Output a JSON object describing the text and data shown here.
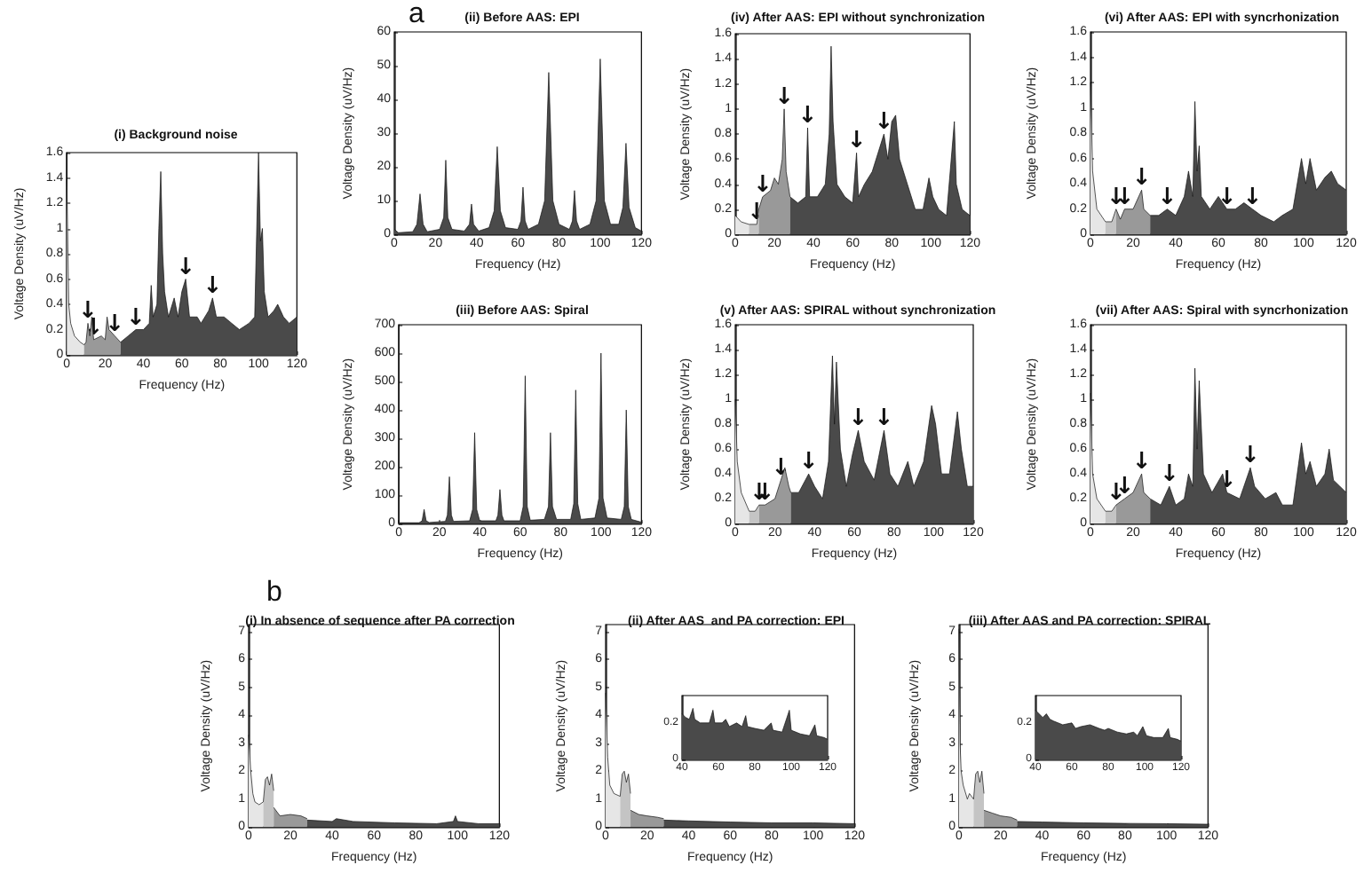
{
  "chart_data": [
    {
      "type": "area",
      "title": "(i) Background noise",
      "xlabel": "Frequency (Hz)",
      "ylabel": "Voltage Density (uV/Hz)",
      "xlim": [
        0,
        120
      ],
      "xticks": [
        0,
        20,
        40,
        60,
        80,
        100,
        120
      ],
      "ylim": [
        0,
        1.6
      ],
      "yticks": [
        0,
        0.2,
        0.4,
        0.6,
        0.8,
        1,
        1.2,
        1.4,
        1.6
      ],
      "grid": false,
      "series": [
        {
          "color": "#e6e6e6",
          "x": [
            0,
            1,
            2,
            4,
            7,
            9
          ],
          "values": [
            1.4,
            0.4,
            0.25,
            0.15,
            0.1,
            0.08
          ]
        },
        {
          "color": "#999999",
          "x": [
            9,
            10,
            11,
            12,
            13,
            14,
            18,
            20,
            21,
            22,
            25,
            28
          ],
          "values": [
            0.08,
            0.1,
            0.25,
            0.15,
            0.3,
            0.12,
            0.15,
            0.12,
            0.3,
            0.2,
            0.15,
            0.1
          ]
        },
        {
          "color": "#4a4a4a",
          "x": [
            28,
            32,
            36,
            40,
            43,
            44,
            45,
            47,
            48,
            49,
            50,
            51,
            53,
            56,
            58,
            60,
            62,
            64,
            68,
            70,
            74,
            76,
            78,
            82,
            86,
            90,
            95,
            98,
            100,
            101,
            102,
            103,
            105,
            108,
            110,
            113,
            116,
            120
          ],
          "values": [
            0.1,
            0.15,
            0.2,
            0.2,
            0.25,
            0.55,
            0.3,
            0.4,
            1.0,
            1.45,
            0.8,
            0.5,
            0.3,
            0.45,
            0.3,
            0.5,
            0.6,
            0.3,
            0.3,
            0.25,
            0.35,
            0.45,
            0.3,
            0.3,
            0.25,
            0.2,
            0.25,
            0.3,
            1.6,
            0.9,
            1.0,
            0.5,
            0.3,
            0.35,
            0.4,
            0.3,
            0.25,
            0.3
          ]
        }
      ],
      "annotations": [
        {
          "text": "↓",
          "x": 11,
          "y": 0.25
        },
        {
          "text": "↓",
          "x": 14,
          "y": 0.12
        },
        {
          "text": "↓",
          "x": 25,
          "y": 0.15
        },
        {
          "text": "↓",
          "x": 36,
          "y": 0.2
        },
        {
          "text": "↓",
          "x": 62,
          "y": 0.6
        },
        {
          "text": "↓",
          "x": 76,
          "y": 0.45
        }
      ]
    },
    {
      "type": "area",
      "title": "(ii) Before AAS: EPI",
      "xlabel": "Frequency (Hz)",
      "ylabel": "Voltage Density (uV/Hz)",
      "xlim": [
        0,
        120
      ],
      "xticks": [
        0,
        20,
        40,
        60,
        80,
        100,
        120
      ],
      "ylim": [
        0,
        60
      ],
      "yticks": [
        0,
        10,
        20,
        30,
        40,
        50,
        60
      ],
      "grid": false,
      "series": [
        {
          "color": "#4a4a4a",
          "x": [
            0,
            2,
            9,
            11,
            12.5,
            14,
            16,
            22,
            24,
            25,
            26,
            28,
            34,
            36.5,
            37.5,
            38.5,
            41,
            46,
            48.5,
            50,
            51.5,
            54,
            60,
            61.5,
            62.5,
            63.5,
            65,
            70,
            73,
            75,
            77,
            80,
            85,
            86.5,
            87.5,
            88.5,
            90,
            95,
            98,
            100,
            102,
            105,
            109,
            111,
            112.5,
            114,
            117,
            120
          ],
          "values": [
            1.5,
            0.5,
            0.8,
            3,
            12,
            3,
            0.8,
            1.5,
            5,
            22,
            5,
            1.5,
            1,
            3,
            9,
            3,
            1,
            2,
            7,
            26,
            7,
            2,
            1.5,
            4,
            14,
            4,
            1.5,
            3,
            10,
            48,
            10,
            3,
            1.5,
            4,
            13,
            4,
            1.5,
            3,
            10,
            52,
            10,
            3,
            3,
            8,
            27,
            8,
            2,
            1
          ]
        }
      ],
      "annotations": [
        "a"
      ]
    },
    {
      "type": "area",
      "title": "(iv) After AAS: EPI without synchronization",
      "xlabel": "Frequency (Hz)",
      "ylabel": "Voltage Density (uV/Hz)",
      "xlim": [
        0,
        120
      ],
      "xticks": [
        0,
        20,
        40,
        60,
        80,
        100,
        120
      ],
      "ylim": [
        0,
        1.6
      ],
      "yticks": [
        0,
        0.2,
        0.4,
        0.6,
        0.8,
        1,
        1.2,
        1.4,
        1.6
      ],
      "grid": false,
      "series": [
        {
          "color": "#e6e6e6",
          "x": [
            0,
            3,
            7
          ],
          "values": [
            0.15,
            0.1,
            0.08
          ]
        },
        {
          "color": "#c4c4c4",
          "x": [
            7,
            11,
            12
          ],
          "values": [
            0.08,
            0.08,
            0.2
          ]
        },
        {
          "color": "#999999",
          "x": [
            12,
            14,
            18,
            20,
            22,
            24,
            25,
            26,
            28
          ],
          "values": [
            0.2,
            0.3,
            0.35,
            0.45,
            0.4,
            0.6,
            1.0,
            0.5,
            0.3
          ]
        },
        {
          "color": "#4a4a4a",
          "x": [
            28,
            32,
            36,
            37,
            38,
            42,
            46,
            48,
            49,
            50,
            52,
            56,
            60,
            62,
            63,
            66,
            70,
            74,
            76,
            78,
            80,
            82,
            84,
            88,
            92,
            96,
            99,
            101,
            104,
            108,
            112,
            113,
            116,
            120
          ],
          "values": [
            0.3,
            0.25,
            0.3,
            0.85,
            0.3,
            0.3,
            0.4,
            0.8,
            1.5,
            0.9,
            0.4,
            0.3,
            0.25,
            0.65,
            0.3,
            0.4,
            0.5,
            0.7,
            0.8,
            0.6,
            0.9,
            0.95,
            0.6,
            0.4,
            0.2,
            0.2,
            0.45,
            0.3,
            0.2,
            0.15,
            0.9,
            0.4,
            0.2,
            0.15
          ]
        }
      ],
      "annotations": [
        {
          "text": "↓",
          "x": 11,
          "y": 0.08
        },
        {
          "text": "↓",
          "x": 14,
          "y": 0.3
        },
        {
          "text": "↓",
          "x": 25,
          "y": 1.0
        },
        {
          "text": "↓",
          "x": 37,
          "y": 0.85
        },
        {
          "text": "↓",
          "x": 62,
          "y": 0.65
        },
        {
          "text": "↓",
          "x": 76,
          "y": 0.8
        }
      ]
    },
    {
      "type": "area",
      "title": "(vi) After AAS: EPI with syncrhonization",
      "xlabel": "Frequency (Hz)",
      "ylabel": "Voltage Density (uV/Hz)",
      "xlim": [
        0,
        120
      ],
      "xticks": [
        0,
        20,
        40,
        60,
        80,
        100,
        120
      ],
      "ylim": [
        0,
        1.6
      ],
      "yticks": [
        0,
        0.2,
        0.4,
        0.6,
        0.8,
        1,
        1.2,
        1.4,
        1.6
      ],
      "grid": false,
      "series": [
        {
          "color": "#e6e6e6",
          "x": [
            0,
            1,
            3,
            7
          ],
          "values": [
            1.2,
            0.5,
            0.2,
            0.1
          ]
        },
        {
          "color": "#c4c4c4",
          "x": [
            7,
            10,
            12
          ],
          "values": [
            0.1,
            0.1,
            0.2
          ]
        },
        {
          "color": "#999999",
          "x": [
            12,
            14,
            16,
            20,
            24,
            25,
            28
          ],
          "values": [
            0.2,
            0.12,
            0.2,
            0.2,
            0.35,
            0.2,
            0.15
          ]
        },
        {
          "color": "#4a4a4a",
          "x": [
            28,
            32,
            36,
            40,
            44,
            46,
            48,
            49,
            50,
            51,
            52,
            56,
            60,
            64,
            68,
            72,
            76,
            80,
            86,
            90,
            95,
            99,
            101,
            103,
            106,
            110,
            113,
            116,
            120
          ],
          "values": [
            0.15,
            0.15,
            0.2,
            0.15,
            0.3,
            0.5,
            0.3,
            1.05,
            0.5,
            0.7,
            0.3,
            0.2,
            0.3,
            0.2,
            0.2,
            0.25,
            0.2,
            0.15,
            0.1,
            0.15,
            0.2,
            0.6,
            0.4,
            0.6,
            0.35,
            0.45,
            0.5,
            0.4,
            0.35
          ]
        }
      ],
      "annotations": [
        {
          "text": "↓",
          "x": 12,
          "y": 0.2
        },
        {
          "text": "↓",
          "x": 16,
          "y": 0.2
        },
        {
          "text": "↓",
          "x": 24,
          "y": 0.35
        },
        {
          "text": "↓",
          "x": 36,
          "y": 0.2
        },
        {
          "text": "↓",
          "x": 64,
          "y": 0.2
        },
        {
          "text": "↓",
          "x": 76,
          "y": 0.2
        }
      ]
    },
    {
      "type": "area",
      "title": "(iii) Before AAS: Spiral",
      "xlabel": "Frequency (Hz)",
      "ylabel": "Voltage Density (uV/Hz)",
      "xlim": [
        0,
        120
      ],
      "xticks": [
        0,
        20,
        40,
        60,
        80,
        100,
        120
      ],
      "ylim": [
        0,
        700
      ],
      "yticks": [
        0,
        100,
        200,
        300,
        400,
        500,
        600,
        700
      ],
      "grid": false,
      "series": [
        {
          "color": "#4a4a4a",
          "x": [
            0,
            10,
            11.5,
            12.5,
            13.5,
            15,
            23,
            24,
            25,
            26,
            27,
            35,
            36.5,
            37.5,
            38.5,
            40,
            48,
            49,
            50,
            51,
            52,
            60,
            61.5,
            62.5,
            63.5,
            65,
            72,
            74,
            75,
            76,
            78,
            85,
            86.5,
            87.5,
            88.5,
            90,
            97,
            99,
            100,
            101,
            103,
            110,
            111.5,
            112.5,
            113.5,
            115,
            120
          ],
          "values": [
            3,
            3,
            10,
            50,
            10,
            4,
            8,
            30,
            165,
            30,
            8,
            10,
            50,
            320,
            50,
            10,
            10,
            30,
            120,
            30,
            10,
            10,
            60,
            520,
            60,
            12,
            15,
            60,
            320,
            60,
            15,
            15,
            70,
            470,
            70,
            15,
            20,
            90,
            600,
            90,
            20,
            15,
            60,
            400,
            60,
            15,
            5
          ]
        }
      ]
    },
    {
      "type": "area",
      "title": "(v) After AAS: SPIRAL without synchronization",
      "xlabel": "Frequency (Hz)",
      "ylabel": "Voltage Density (uV/Hz)",
      "xlim": [
        0,
        120
      ],
      "xticks": [
        0,
        20,
        40,
        60,
        80,
        100,
        120
      ],
      "ylim": [
        0,
        1.6
      ],
      "yticks": [
        0,
        0.2,
        0.4,
        0.6,
        0.8,
        1,
        1.2,
        1.4,
        1.6
      ],
      "grid": false,
      "series": [
        {
          "color": "#e6e6e6",
          "x": [
            0,
            1,
            3,
            7
          ],
          "values": [
            1.0,
            0.5,
            0.25,
            0.1
          ]
        },
        {
          "color": "#c4c4c4",
          "x": [
            7,
            10,
            12
          ],
          "values": [
            0.1,
            0.1,
            0.15
          ]
        },
        {
          "color": "#999999",
          "x": [
            12,
            15,
            20,
            23,
            25,
            27,
            28
          ],
          "values": [
            0.15,
            0.15,
            0.2,
            0.35,
            0.45,
            0.3,
            0.25
          ]
        },
        {
          "color": "#4a4a4a",
          "x": [
            28,
            32,
            37,
            40,
            44,
            47,
            49,
            50,
            51,
            53,
            56,
            59,
            62,
            65,
            70,
            75,
            78,
            82,
            87,
            90,
            95,
            99,
            101,
            104,
            108,
            112,
            114,
            117,
            120
          ],
          "values": [
            0.25,
            0.25,
            0.4,
            0.3,
            0.2,
            0.5,
            1.35,
            0.8,
            1.3,
            0.6,
            0.3,
            0.55,
            0.75,
            0.5,
            0.35,
            0.75,
            0.4,
            0.3,
            0.5,
            0.3,
            0.5,
            0.95,
            0.8,
            0.4,
            0.4,
            0.9,
            0.6,
            0.3,
            0.3
          ]
        }
      ],
      "annotations": [
        {
          "text": "↓",
          "x": 12,
          "y": 0.15
        },
        {
          "text": "↓",
          "x": 15,
          "y": 0.15
        },
        {
          "text": "↓",
          "x": 23,
          "y": 0.35
        },
        {
          "text": "↓",
          "x": 37,
          "y": 0.4
        },
        {
          "text": "↓",
          "x": 62,
          "y": 0.75
        },
        {
          "text": "↓",
          "x": 75,
          "y": 0.75
        }
      ]
    },
    {
      "type": "area",
      "title": "(vii) After AAS: Spiral with syncrhonization",
      "xlabel": "Frequency (Hz)",
      "ylabel": "Voltage Density (uV/Hz)",
      "xlim": [
        0,
        120
      ],
      "xticks": [
        0,
        20,
        40,
        60,
        80,
        100,
        120
      ],
      "ylim": [
        0,
        1.6
      ],
      "yticks": [
        0,
        0.2,
        0.4,
        0.6,
        0.8,
        1,
        1.2,
        1.4,
        1.6
      ],
      "grid": false,
      "series": [
        {
          "color": "#e6e6e6",
          "x": [
            0,
            1,
            3,
            7
          ],
          "values": [
            1.05,
            0.4,
            0.2,
            0.1
          ]
        },
        {
          "color": "#c4c4c4",
          "x": [
            7,
            10,
            12
          ],
          "values": [
            0.1,
            0.1,
            0.15
          ]
        },
        {
          "color": "#999999",
          "x": [
            12,
            16,
            20,
            24,
            25,
            28
          ],
          "values": [
            0.15,
            0.2,
            0.25,
            0.4,
            0.25,
            0.2
          ]
        },
        {
          "color": "#4a4a4a",
          "x": [
            28,
            33,
            37,
            40,
            44,
            46,
            48,
            49,
            50,
            51,
            53,
            57,
            62,
            64,
            70,
            75,
            77,
            82,
            87,
            90,
            95,
            99,
            101,
            103,
            106,
            110,
            112,
            114,
            117,
            120
          ],
          "values": [
            0.2,
            0.15,
            0.3,
            0.15,
            0.2,
            0.4,
            0.3,
            1.25,
            0.6,
            1.15,
            0.4,
            0.25,
            0.4,
            0.25,
            0.2,
            0.45,
            0.3,
            0.2,
            0.25,
            0.15,
            0.15,
            0.65,
            0.4,
            0.5,
            0.3,
            0.4,
            0.6,
            0.35,
            0.3,
            0.25
          ]
        }
      ],
      "annotations": [
        {
          "text": "↓",
          "x": 12,
          "y": 0.15
        },
        {
          "text": "↓",
          "x": 16,
          "y": 0.2
        },
        {
          "text": "↓",
          "x": 24,
          "y": 0.4
        },
        {
          "text": "↓",
          "x": 37,
          "y": 0.3
        },
        {
          "text": "↓",
          "x": 64,
          "y": 0.25
        },
        {
          "text": "↓",
          "x": 75,
          "y": 0.45
        }
      ]
    },
    {
      "type": "area",
      "title": "(i) In absence of sequence after PA correction",
      "xlabel": "Frequency (Hz)",
      "ylabel": "Voltage Density (uV/Hz)",
      "xlim": [
        0,
        120
      ],
      "xticks": [
        0,
        20,
        40,
        60,
        80,
        100,
        120
      ],
      "ylim": [
        0,
        7.25
      ],
      "yticks": [
        0,
        1,
        2,
        3,
        4,
        5,
        6,
        7
      ],
      "grid": false,
      "series": [
        {
          "color": "#e6e6e6",
          "x": [
            0,
            1,
            2,
            3,
            5,
            7
          ],
          "values": [
            3.3,
            2.0,
            1.2,
            0.9,
            0.8,
            0.9
          ]
        },
        {
          "color": "#c4c4c4",
          "x": [
            7,
            8,
            9,
            10,
            11,
            12
          ],
          "values": [
            0.9,
            1.7,
            1.8,
            1.5,
            1.9,
            1.3
          ]
        },
        {
          "color": "#999999",
          "x": [
            12,
            15,
            20,
            25,
            28
          ],
          "values": [
            0.7,
            0.4,
            0.45,
            0.4,
            0.3
          ]
        },
        {
          "color": "#4a4a4a",
          "x": [
            28,
            40,
            42,
            50,
            70,
            90,
            98,
            99,
            100,
            110,
            120
          ],
          "values": [
            0.25,
            0.2,
            0.3,
            0.2,
            0.15,
            0.12,
            0.2,
            0.4,
            0.2,
            0.12,
            0.12
          ]
        }
      ],
      "annotations": [
        "b"
      ]
    },
    {
      "type": "area",
      "title": "(ii) After AAS  and PA correction: EPI",
      "xlabel": "Frequency (Hz)",
      "ylabel": "Voltage Density (uV/Hz)",
      "xlim": [
        0,
        120
      ],
      "xticks": [
        0,
        20,
        40,
        60,
        80,
        100,
        120
      ],
      "ylim": [
        0,
        7.25
      ],
      "yticks": [
        0,
        1,
        2,
        3,
        4,
        5,
        6,
        7
      ],
      "grid": false,
      "series": [
        {
          "color": "#e6e6e6",
          "x": [
            0,
            1,
            2,
            4,
            7
          ],
          "values": [
            4.8,
            2.5,
            1.5,
            1.2,
            1.1
          ]
        },
        {
          "color": "#c4c4c4",
          "x": [
            7,
            8,
            9,
            10,
            11,
            12
          ],
          "values": [
            1.1,
            1.9,
            2.0,
            1.6,
            1.9,
            1.2
          ]
        },
        {
          "color": "#999999",
          "x": [
            12,
            16,
            20,
            25,
            28
          ],
          "values": [
            0.6,
            0.45,
            0.4,
            0.35,
            0.3
          ]
        },
        {
          "color": "#4a4a4a",
          "x": [
            28,
            40,
            60,
            80,
            100,
            120
          ],
          "values": [
            0.25,
            0.22,
            0.18,
            0.15,
            0.15,
            0.12
          ]
        }
      ]
    },
    {
      "type": "area",
      "xlim": [
        40,
        120
      ],
      "xticks": [
        40,
        60,
        80,
        100,
        120
      ],
      "ylim": [
        0,
        0.35
      ],
      "yticks": [
        0,
        0.2
      ],
      "grid": false,
      "series": [
        {
          "color": "#4a4a4a",
          "x": [
            40,
            42,
            44,
            46,
            47,
            50,
            55,
            57,
            58,
            62,
            64,
            66,
            70,
            73,
            75,
            76,
            80,
            85,
            89,
            90,
            95,
            99,
            100,
            105,
            110,
            113,
            114,
            118,
            120
          ],
          "values": [
            0.25,
            0.23,
            0.22,
            0.28,
            0.22,
            0.2,
            0.2,
            0.27,
            0.2,
            0.2,
            0.22,
            0.18,
            0.2,
            0.18,
            0.24,
            0.18,
            0.17,
            0.16,
            0.2,
            0.16,
            0.15,
            0.27,
            0.16,
            0.14,
            0.13,
            0.19,
            0.13,
            0.12,
            0.11
          ]
        }
      ]
    },
    {
      "type": "area",
      "title": "(iii) After AAS and PA correction: SPIRAL",
      "xlabel": "Frequency (Hz)",
      "ylabel": "Voltage Density (uV/Hz)",
      "xlim": [
        0,
        120
      ],
      "xticks": [
        0,
        20,
        40,
        60,
        80,
        100,
        120
      ],
      "ylim": [
        0,
        7.25
      ],
      "yticks": [
        0,
        1,
        2,
        3,
        4,
        5,
        6,
        7
      ],
      "grid": false,
      "series": [
        {
          "color": "#e6e6e6",
          "x": [
            0,
            0.5,
            1,
            2,
            4,
            5,
            7
          ],
          "values": [
            7.1,
            3.0,
            2.0,
            1.5,
            1.0,
            1.2,
            1.0
          ]
        },
        {
          "color": "#c4c4c4",
          "x": [
            7,
            8,
            9,
            10,
            11,
            12
          ],
          "values": [
            1.0,
            1.9,
            2.0,
            1.6,
            2.0,
            1.2
          ]
        },
        {
          "color": "#999999",
          "x": [
            12,
            16,
            20,
            25,
            28
          ],
          "values": [
            0.6,
            0.5,
            0.4,
            0.35,
            0.25
          ]
        },
        {
          "color": "#4a4a4a",
          "x": [
            28,
            40,
            60,
            80,
            100,
            120
          ],
          "values": [
            0.2,
            0.18,
            0.15,
            0.13,
            0.12,
            0.1
          ]
        }
      ]
    },
    {
      "type": "area",
      "xlim": [
        40,
        120
      ],
      "xticks": [
        40,
        60,
        80,
        100,
        120
      ],
      "ylim": [
        0,
        0.35
      ],
      "yticks": [
        0,
        0.2
      ],
      "grid": false,
      "series": [
        {
          "color": "#4a4a4a",
          "x": [
            40,
            42,
            44,
            46,
            48,
            50,
            55,
            60,
            62,
            65,
            70,
            75,
            78,
            80,
            85,
            90,
            94,
            96,
            99,
            101,
            105,
            110,
            113,
            114,
            118,
            120
          ],
          "values": [
            0.27,
            0.25,
            0.23,
            0.25,
            0.22,
            0.21,
            0.19,
            0.2,
            0.17,
            0.18,
            0.19,
            0.17,
            0.16,
            0.17,
            0.15,
            0.14,
            0.15,
            0.13,
            0.18,
            0.13,
            0.12,
            0.12,
            0.17,
            0.12,
            0.11,
            0.1
          ]
        }
      ]
    }
  ]
}
